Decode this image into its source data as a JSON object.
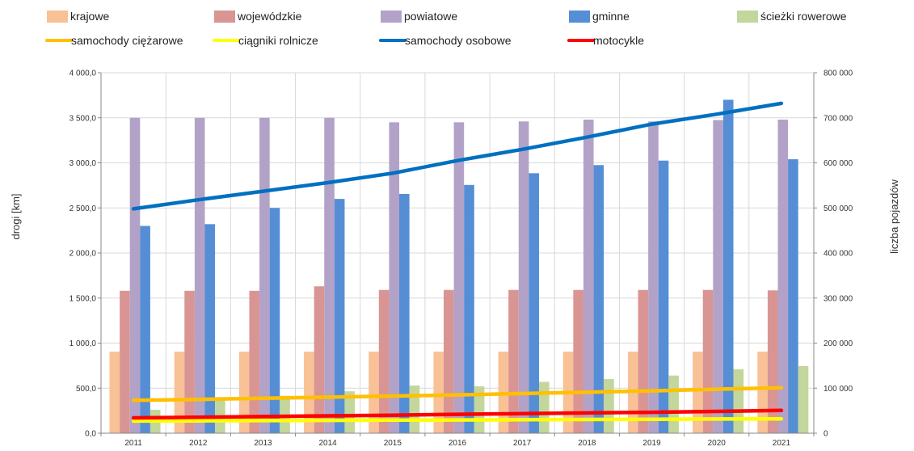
{
  "chart_data": {
    "type": "bar",
    "categories": [
      "2011",
      "2012",
      "2013",
      "2014",
      "2015",
      "2016",
      "2017",
      "2018",
      "2019",
      "2020",
      "2021"
    ],
    "ylabel": "drogi [km]",
    "y2label": "liczba pojazdów",
    "ylim": [
      0,
      4000
    ],
    "y2lim": [
      0,
      800000
    ],
    "y_ticks": [
      "0,0",
      "500,0",
      "1 000,0",
      "1 500,0",
      "2 000,0",
      "2 500,0",
      "3 000,0",
      "3 500,0",
      "4 000,0"
    ],
    "y2_ticks": [
      "0",
      "100 000",
      "200 000",
      "300 000",
      "400 000",
      "500 000",
      "600 000",
      "700 000",
      "800 000"
    ],
    "grid": true,
    "legend_position": "top",
    "bar_series": [
      {
        "name": "krajowe",
        "color": "#F9C196",
        "values": [
          905,
          905,
          905,
          905,
          905,
          905,
          905,
          905,
          905,
          905,
          905
        ]
      },
      {
        "name": "wojewódzkie",
        "color": "#D99593",
        "values": [
          1580,
          1580,
          1580,
          1630,
          1590,
          1590,
          1590,
          1590,
          1590,
          1590,
          1585
        ]
      },
      {
        "name": "powiatowe",
        "color": "#B3A2C7",
        "values": [
          3500,
          3500,
          3500,
          3500,
          3450,
          3450,
          3460,
          3480,
          3460,
          3475,
          3480
        ]
      },
      {
        "name": "gminne",
        "color": "#558ED5",
        "values": [
          2300,
          2320,
          2500,
          2600,
          2655,
          2755,
          2885,
          2975,
          3025,
          3700,
          3040
        ]
      },
      {
        "name": "ścieżki rowerowe",
        "color": "#C3D69B",
        "values": [
          260,
          400,
          415,
          465,
          530,
          520,
          570,
          600,
          640,
          710,
          745
        ]
      }
    ],
    "line_series": [
      {
        "name": "samochody ciężarowe",
        "color": "#FFC000",
        "axis": "right",
        "values": [
          73000,
          75000,
          77500,
          80000,
          82500,
          85000,
          88000,
          91000,
          94000,
          97500,
          101000
        ]
      },
      {
        "name": "ciągniki rolnicze",
        "color": "#FFFF00",
        "axis": "right",
        "values": [
          27000,
          27500,
          28000,
          28500,
          29000,
          29500,
          30000,
          30500,
          31000,
          31500,
          32000
        ]
      },
      {
        "name": "samochody osobowe",
        "color": "#0070C0",
        "axis": "right",
        "values": [
          498000,
          518000,
          537000,
          556000,
          577000,
          605000,
          630000,
          657000,
          686000,
          708000,
          732000
        ]
      },
      {
        "name": "motocykle",
        "color": "#FF0000",
        "axis": "right",
        "values": [
          34000,
          35500,
          37000,
          38500,
          40000,
          42000,
          43500,
          45000,
          46500,
          48500,
          50500
        ]
      }
    ]
  }
}
